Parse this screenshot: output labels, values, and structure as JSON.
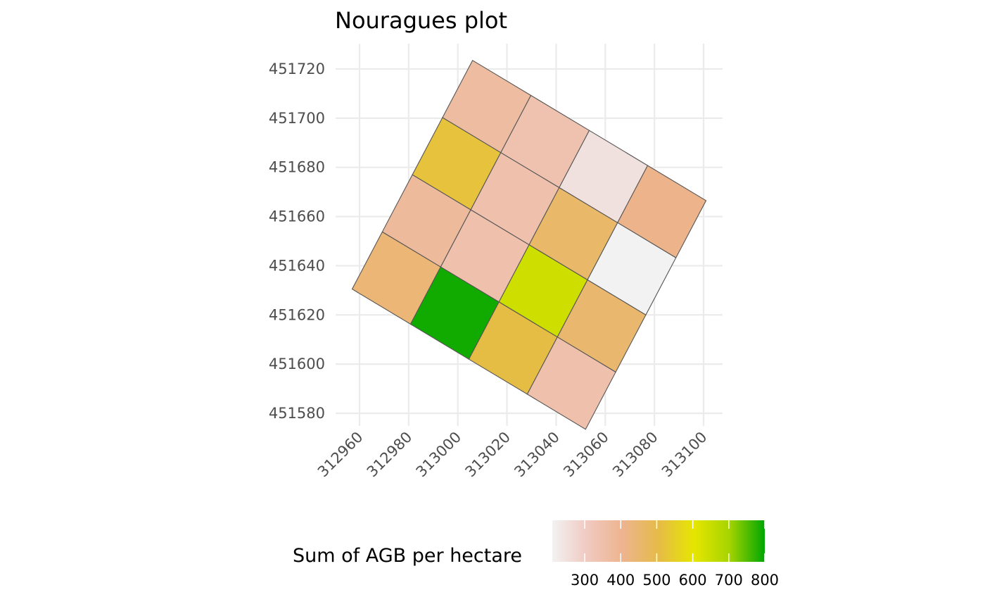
{
  "chart_data": {
    "type": "heatmap",
    "title": "Nouragues plot",
    "xlabel": "",
    "ylabel": "",
    "xlim": [
      312955,
      313104
    ],
    "ylim": [
      451575,
      451730
    ],
    "x_ticks": [
      "312960",
      "312980",
      "313000",
      "313020",
      "313040",
      "313060",
      "313080",
      "313100"
    ],
    "y_ticks": [
      "451580",
      "451600",
      "451620",
      "451640",
      "451660",
      "451680",
      "451700",
      "451720"
    ],
    "grid": true,
    "legend": {
      "title": "Sum of AGB per hectare",
      "position": "bottom",
      "range": [
        210,
        800
      ],
      "ticks": [
        "300",
        "400",
        "500",
        "600",
        "700",
        "800"
      ],
      "colors": [
        "#f2f2f2",
        "#f0c9c0",
        "#edb48e",
        "#e6bb48",
        "#e6e600",
        "#a6d400",
        "#00a600"
      ]
    },
    "grid_origin": {
      "x": 313006,
      "y": 451723.5
    },
    "col_step": {
      "dx": 23.75,
      "dy": -14.25
    },
    "row_step": {
      "dx": -12.25,
      "dy": -23.25
    },
    "cells": [
      {
        "col": 0,
        "row": 0,
        "value": 370
      },
      {
        "col": 1,
        "row": 0,
        "value": 340
      },
      {
        "col": 2,
        "row": 0,
        "value": 250
      },
      {
        "col": 3,
        "row": 0,
        "value": 410
      },
      {
        "col": 0,
        "row": 1,
        "value": 520
      },
      {
        "col": 1,
        "row": 1,
        "value": 345
      },
      {
        "col": 2,
        "row": 1,
        "value": 460
      },
      {
        "col": 3,
        "row": 1,
        "value": 210
      },
      {
        "col": 0,
        "row": 2,
        "value": 380
      },
      {
        "col": 1,
        "row": 2,
        "value": 350
      },
      {
        "col": 2,
        "row": 2,
        "value": 640
      },
      {
        "col": 3,
        "row": 2,
        "value": 450
      },
      {
        "col": 0,
        "row": 3,
        "value": 440
      },
      {
        "col": 1,
        "row": 3,
        "value": 790
      },
      {
        "col": 2,
        "row": 3,
        "value": 510
      },
      {
        "col": 3,
        "row": 3,
        "value": 345
      }
    ]
  }
}
